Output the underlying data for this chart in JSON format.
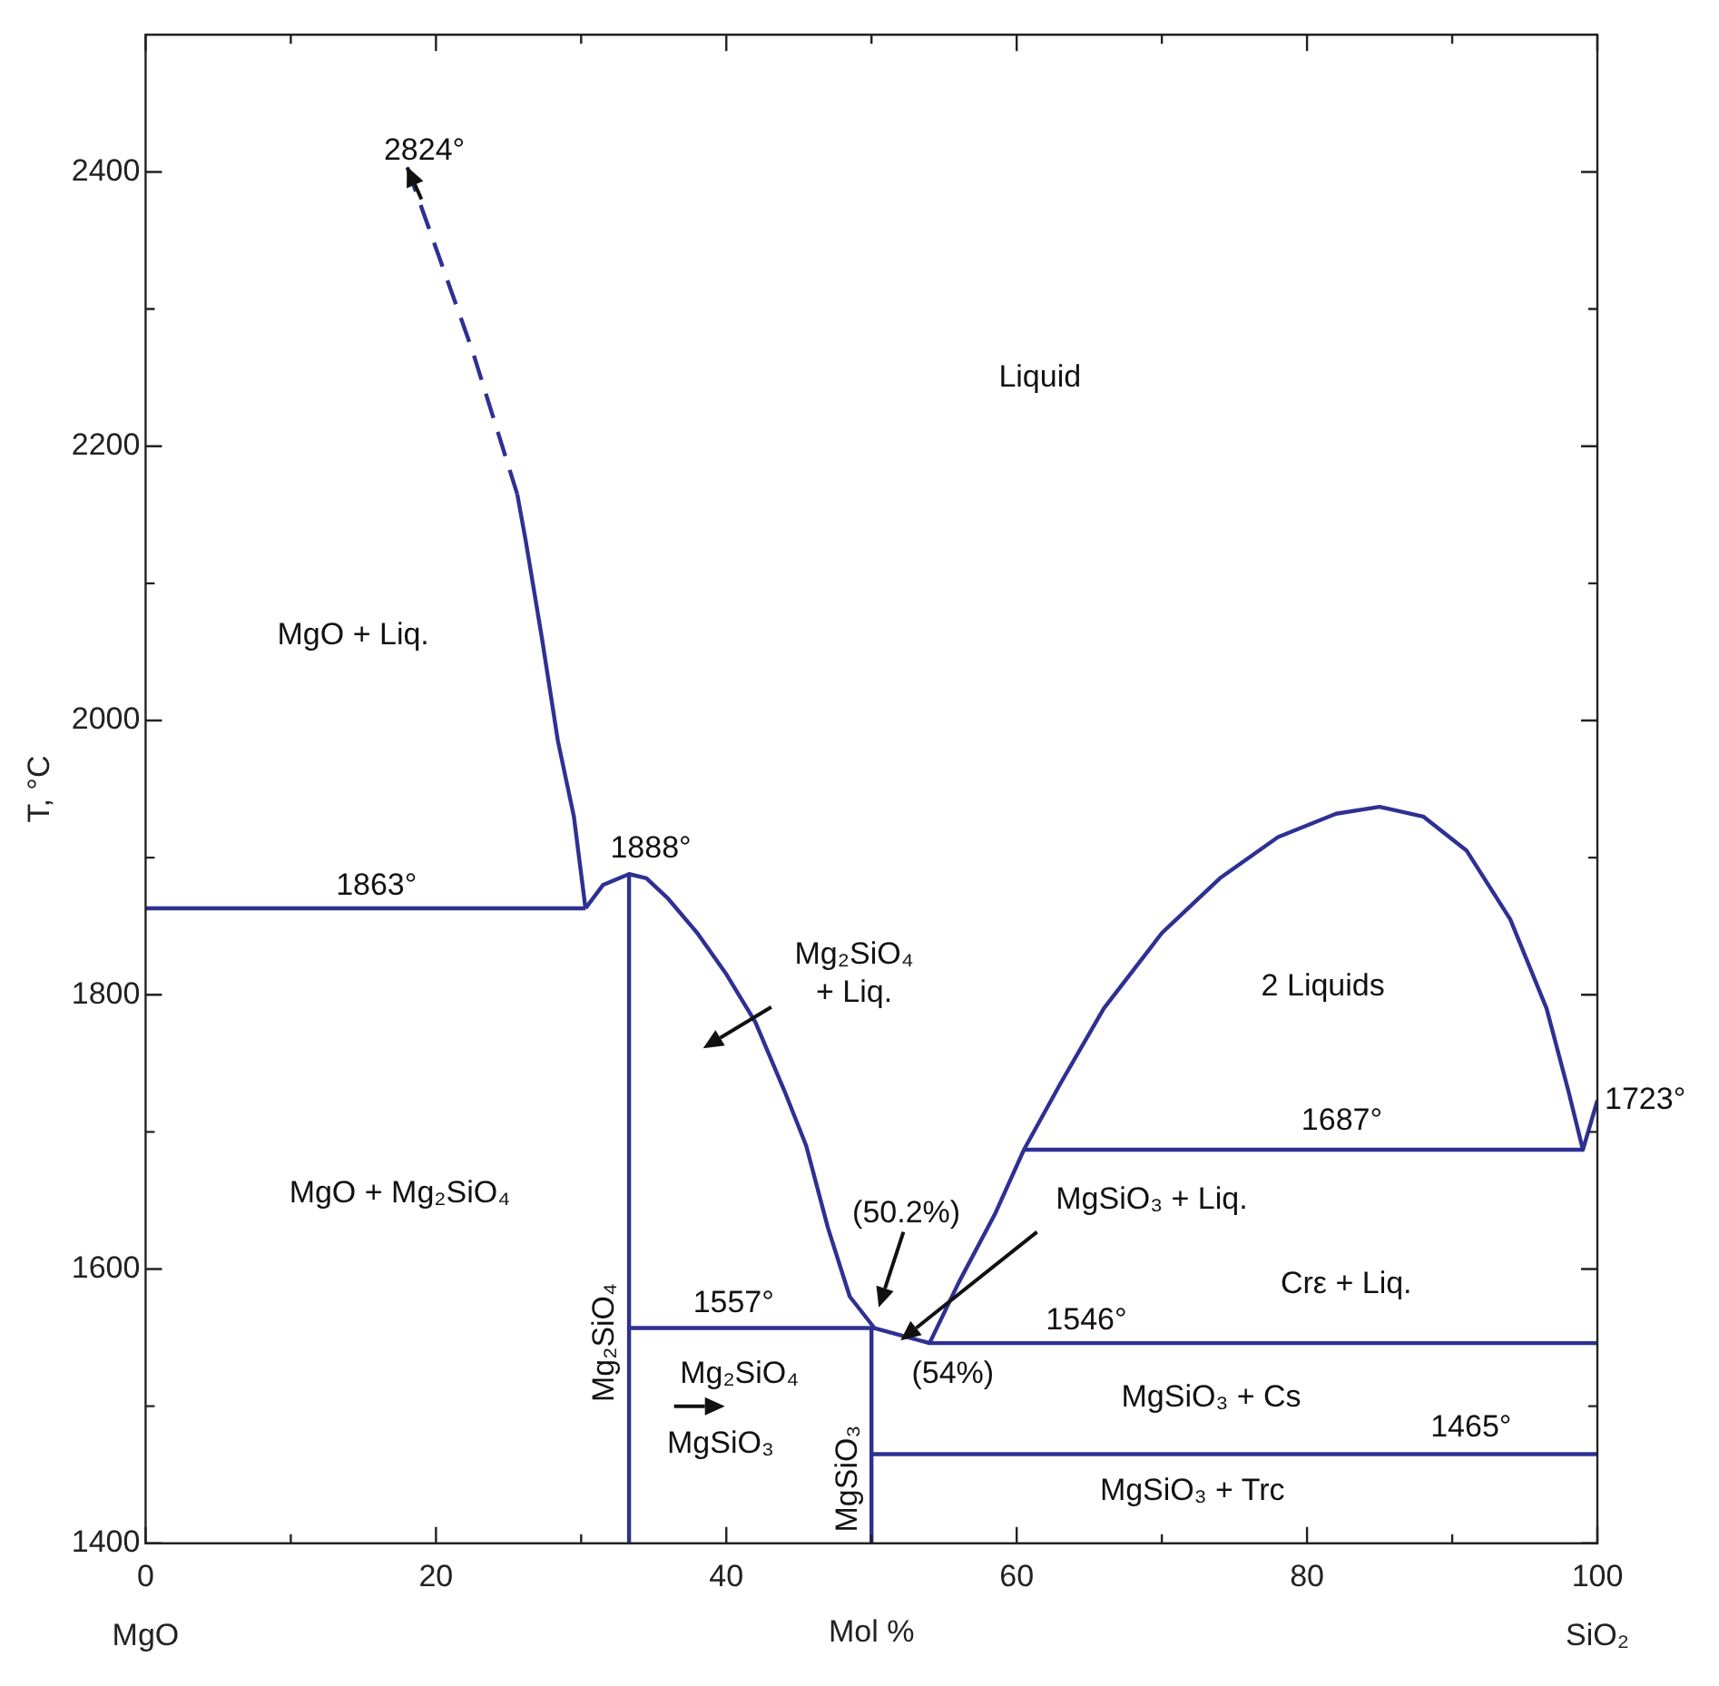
{
  "chart_data": {
    "type": "line",
    "xlabel": "Mol %",
    "ylabel": "T, °C",
    "color": "#2e3192",
    "xlim": [
      0,
      100
    ],
    "ylim": [
      1400,
      2500
    ],
    "xticks": [
      {
        "value": 0,
        "label": "0\nMgO"
      },
      {
        "value": 10,
        "label": null
      },
      20,
      {
        "value": 30,
        "label": null
      },
      40,
      {
        "value": 50,
        "label": null
      },
      60,
      {
        "value": 70,
        "label": null
      },
      80,
      {
        "value": 90,
        "label": null
      },
      {
        "value": 100,
        "label": "100\nSiO₂"
      }
    ],
    "yticks": [
      1400,
      {
        "value": 1500,
        "label": null
      },
      1600,
      {
        "value": 1700,
        "label": null
      },
      1800,
      {
        "value": 1900,
        "label": null
      },
      2000,
      {
        "value": 2100,
        "label": null
      },
      2200,
      {
        "value": 2300,
        "label": null
      },
      2400
    ],
    "grid": false,
    "legend": false,
    "series": [
      {
        "x": [
          30.3,
          29.5,
          28.4,
          27.3,
          26.2,
          25.6
        ],
        "values": [
          1863,
          1930,
          1985,
          2060,
          2130,
          2165
        ]
      },
      {
        "x": [
          25.6,
          22.5,
          18.0
        ],
        "values": [
          2165,
          2270,
          2404
        ],
        "line_style": "dashed"
      },
      {
        "x": [
          0,
          30.3
        ],
        "values": [
          1863,
          1863
        ]
      },
      {
        "x": [
          30.3,
          31.5,
          33.3,
          34.5,
          36,
          38,
          40,
          42,
          44,
          45.5,
          47,
          48.5,
          50.2,
          54,
          56,
          58.5,
          60.5,
          63,
          66,
          70,
          74,
          78,
          82,
          85,
          88,
          91,
          94,
          96.5,
          98,
          99,
          100
        ],
        "values": [
          1863,
          1880,
          1888,
          1885,
          1870,
          1845,
          1815,
          1780,
          1730,
          1690,
          1630,
          1580,
          1557,
          1546,
          1590,
          1640,
          1687,
          1735,
          1790,
          1845,
          1885,
          1915,
          1932,
          1937,
          1930,
          1905,
          1855,
          1790,
          1730,
          1687,
          1723
        ]
      },
      {
        "name": "Mg₂SiO₄",
        "x": [
          33.3,
          33.3
        ],
        "values": [
          1400,
          1888
        ]
      },
      {
        "x": [
          33.3,
          50.2
        ],
        "values": [
          1557,
          1557
        ]
      },
      {
        "name": "MgSiO₃",
        "x": [
          50,
          50
        ],
        "values": [
          1400,
          1557
        ]
      },
      {
        "x": [
          60.5,
          99
        ],
        "values": [
          1687,
          1687
        ]
      },
      {
        "x": [
          54,
          100
        ],
        "values": [
          1546,
          1546
        ]
      },
      {
        "x": [
          50,
          100
        ],
        "values": [
          1465,
          1465
        ]
      }
    ],
    "annotations": [
      "2824°",
      "Liquid",
      "MgO + Liq.",
      "1863°",
      "1888°",
      "Mg₂SiO₄\n+ Liq.",
      "2 Liquids",
      {
        "text": "1723°",
        "x": 100,
        "y": 1723
      },
      "1687°",
      "(50.2%)",
      "MgSiO₃ + Liq.",
      "MgO + Mg₂SiO₄",
      "Crε + Liq.",
      "1557°",
      "1546°",
      "Mg₂SiO₄",
      "MgSiO₃",
      "(54%)",
      "MgSiO₃ + Cs",
      "1465°",
      "MgSiO₃ + Trc"
    ]
  }
}
